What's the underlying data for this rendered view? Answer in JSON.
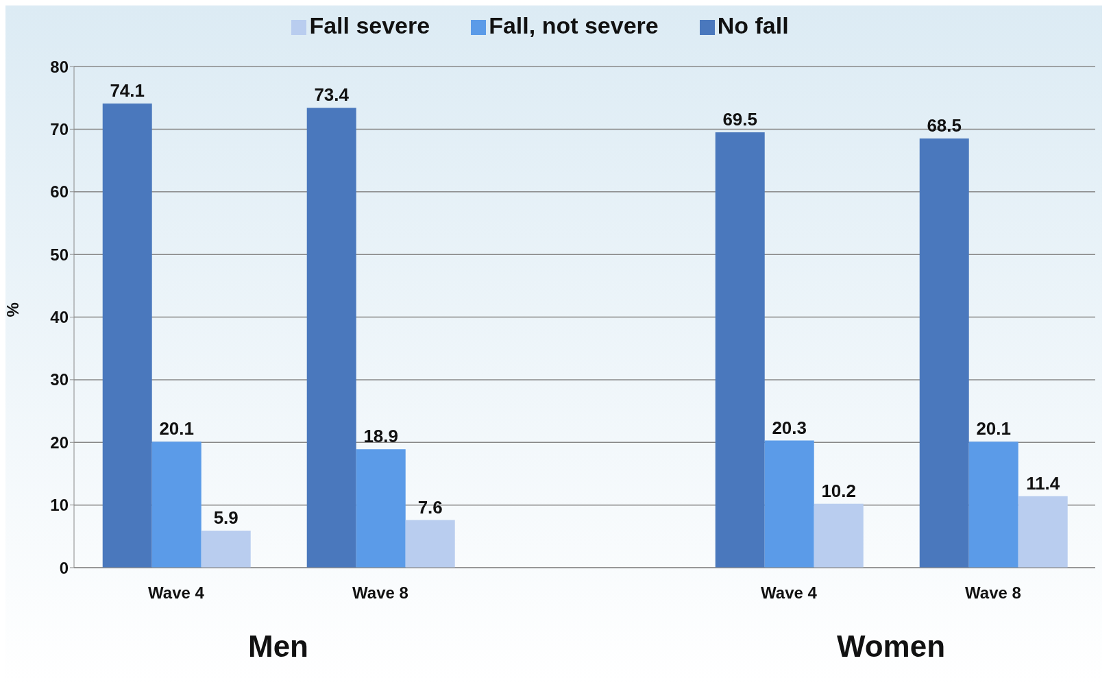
{
  "chart_data": {
    "type": "bar",
    "ylabel": "%",
    "categories": [
      "Wave 4",
      "Wave 8",
      null,
      "Wave 4",
      "Wave 8"
    ],
    "series": [
      {
        "name": "No fall",
        "color": "#4a78bd",
        "values": [
          74.1,
          73.4,
          null,
          69.5,
          68.5
        ]
      },
      {
        "name": "Fall, not severe",
        "color": "#5b9be8",
        "values": [
          20.1,
          18.9,
          null,
          20.3,
          20.1
        ]
      },
      {
        "name": "Fall severe",
        "color": "#b9cdef",
        "values": [
          5.9,
          7.6,
          null,
          10.2,
          11.4
        ]
      }
    ],
    "ylim": [
      0,
      80
    ],
    "yticks": [
      0,
      10,
      20,
      30,
      40,
      50,
      60,
      70,
      80
    ],
    "grid": "y",
    "legend": "top",
    "data_labels": true,
    "annotations": [
      "Men",
      "Women"
    ]
  }
}
